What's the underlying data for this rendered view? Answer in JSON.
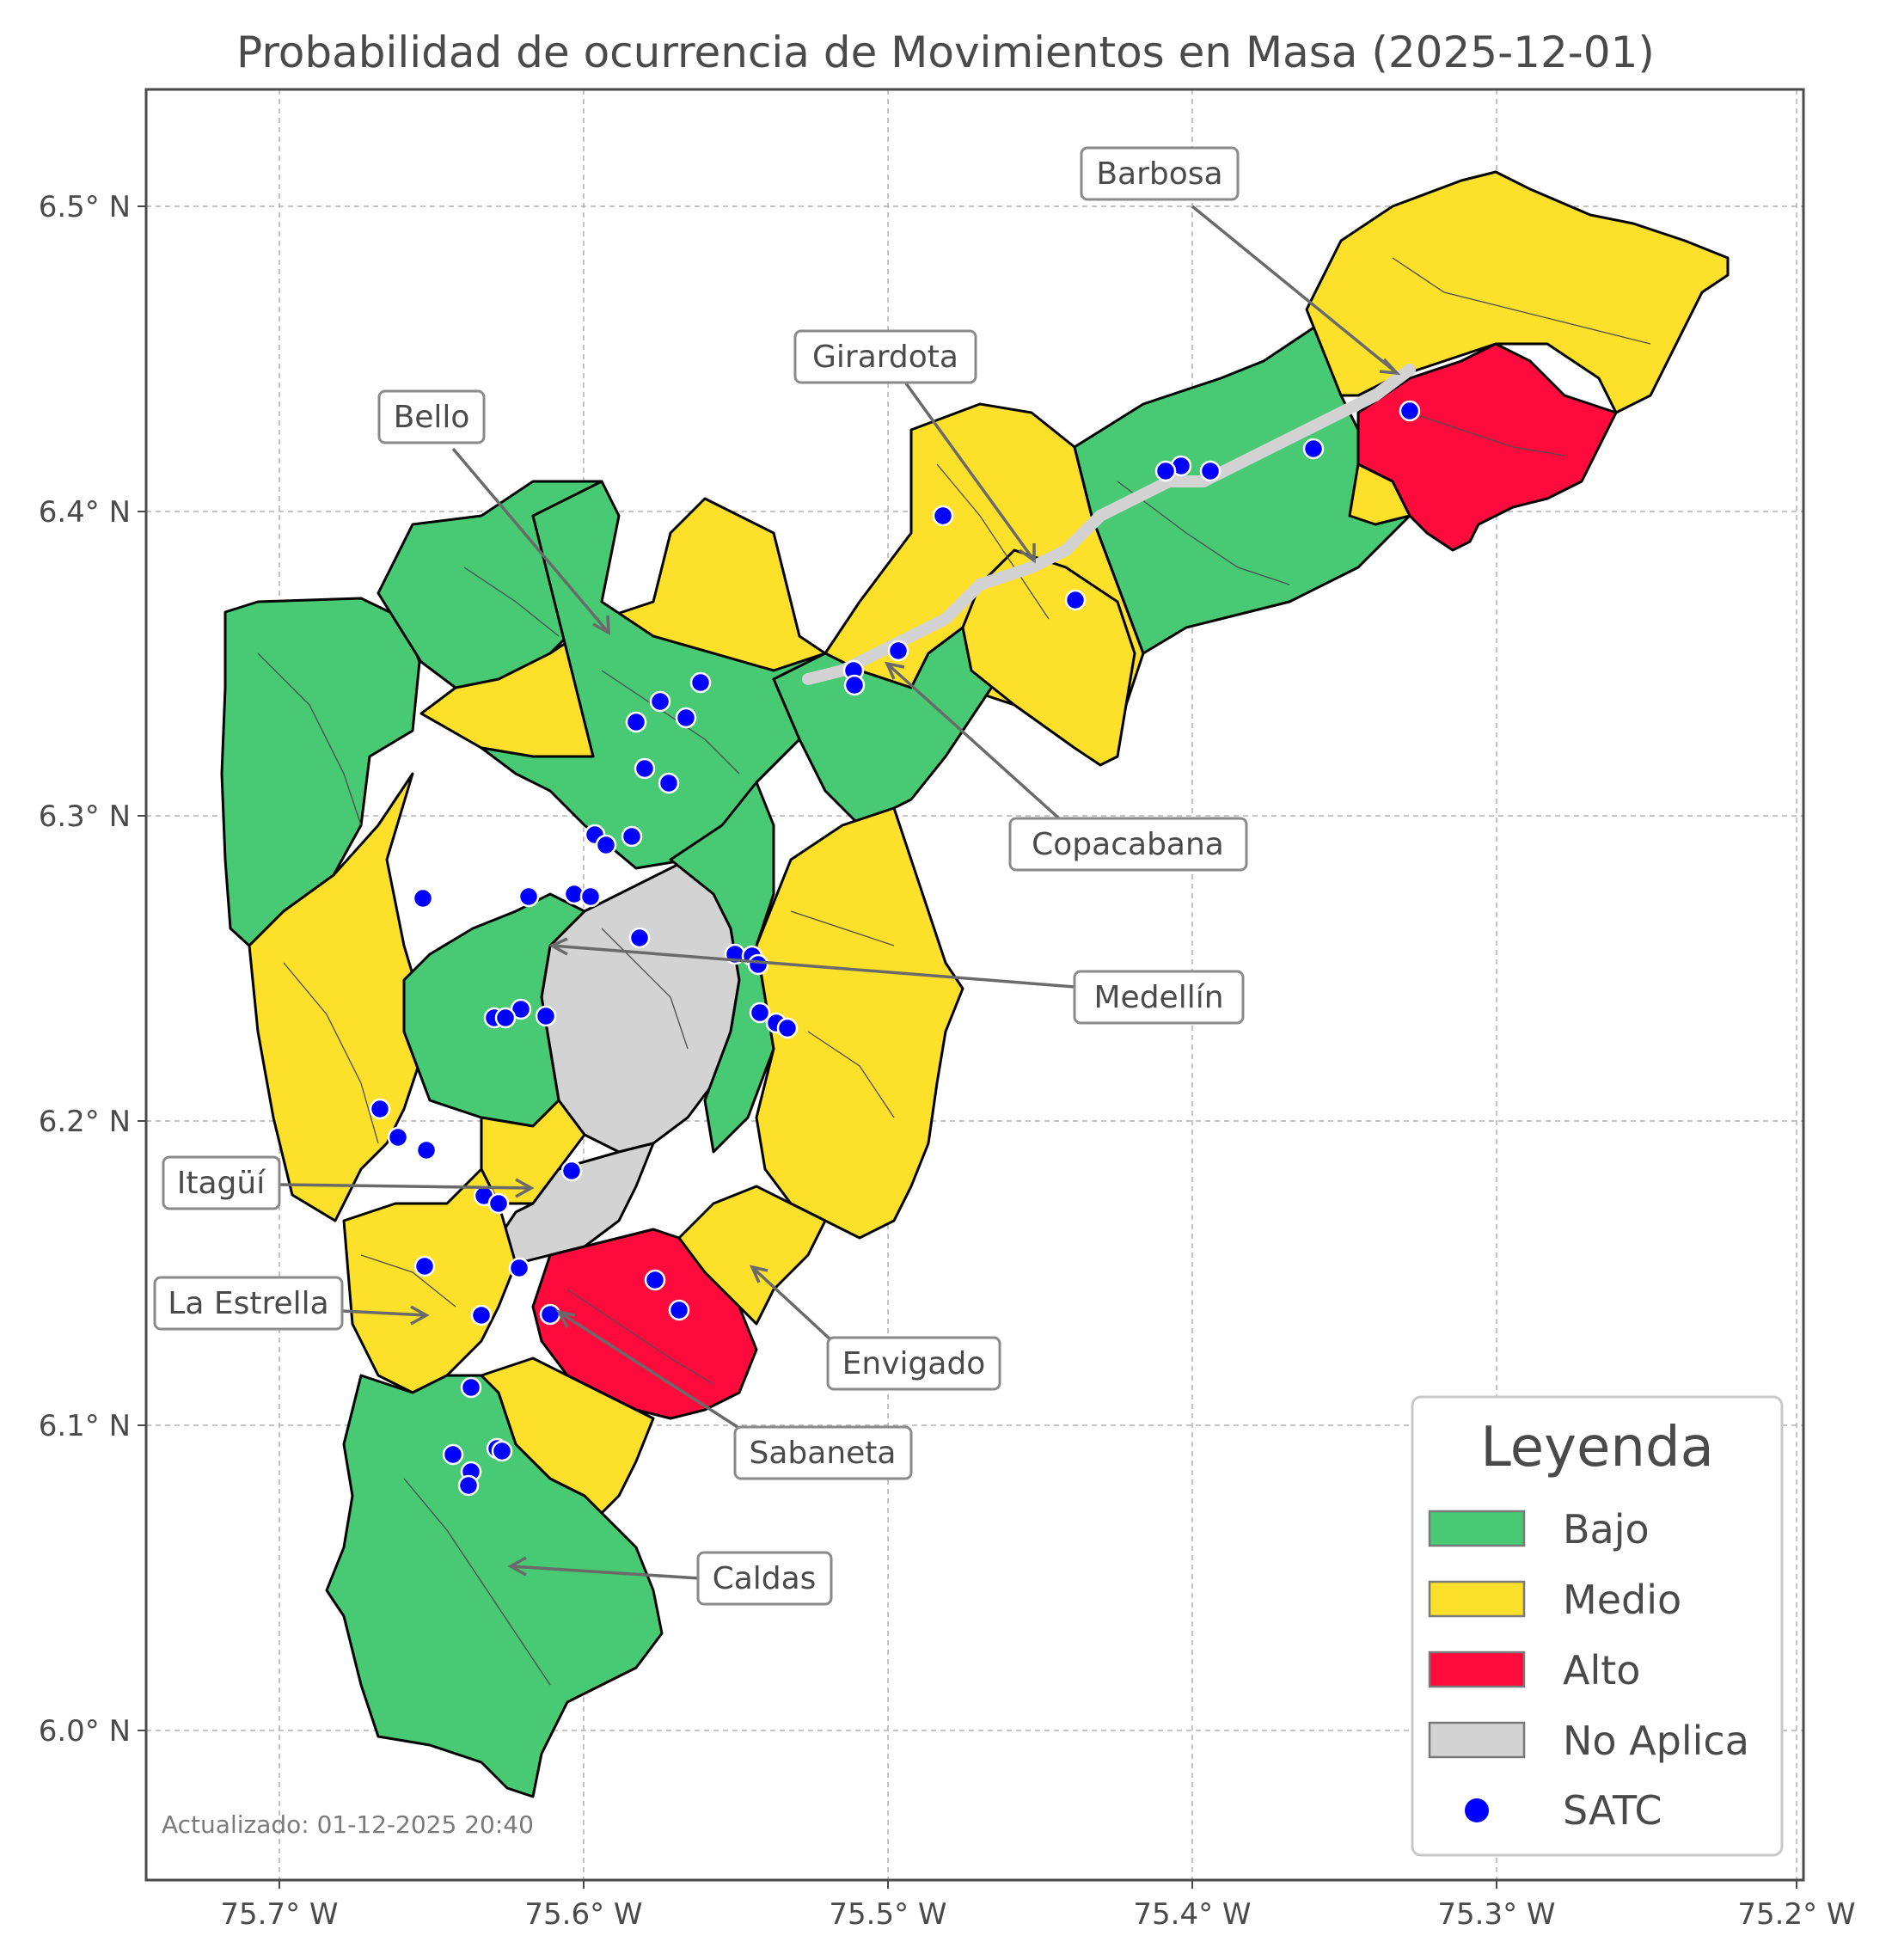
{
  "title": "Probabilidad de ocurrencia de Movimientos en Masa (2025-12-01)",
  "axes": {
    "x_ticks": [
      "75.7° W",
      "75.6° W",
      "75.5° W",
      "75.4° W",
      "75.3° W",
      "75.2° W"
    ],
    "y_ticks": [
      "6.5° N",
      "6.4° N",
      "6.3° N",
      "6.2° N",
      "6.1° N",
      "6.0° N"
    ]
  },
  "colors": {
    "bajo": "#48c974",
    "medio": "#fce02a",
    "alto": "#ff0a3c",
    "no_aplica": "#d3d3d3",
    "satc": "#0000ff"
  },
  "municipalities": [
    {
      "name": "Barbosa",
      "risk": "alto"
    },
    {
      "name": "Girardota",
      "risk": "medio"
    },
    {
      "name": "Bello",
      "risk": "medio"
    },
    {
      "name": "Copacabana",
      "risk": "bajo"
    },
    {
      "name": "Medellín",
      "risk": "no_aplica"
    },
    {
      "name": "Itagüí",
      "risk": "medio"
    },
    {
      "name": "La Estrella",
      "risk": "medio"
    },
    {
      "name": "Envigado",
      "risk": "medio"
    },
    {
      "name": "Sabaneta",
      "risk": "alto"
    },
    {
      "name": "Caldas",
      "risk": "bajo"
    }
  ],
  "legend": {
    "title": "Leyenda",
    "items": [
      {
        "label": "Bajo",
        "color": "#48c974",
        "kind": "patch"
      },
      {
        "label": "Medio",
        "color": "#fce02a",
        "kind": "patch"
      },
      {
        "label": "Alto",
        "color": "#ff0a3c",
        "kind": "patch"
      },
      {
        "label": "No Aplica",
        "color": "#d3d3d3",
        "kind": "patch"
      },
      {
        "label": "SATC",
        "color": "#0000ff",
        "kind": "dot"
      }
    ]
  },
  "footer": {
    "updated": "Actualizado: 01-12-2025 20:40"
  }
}
